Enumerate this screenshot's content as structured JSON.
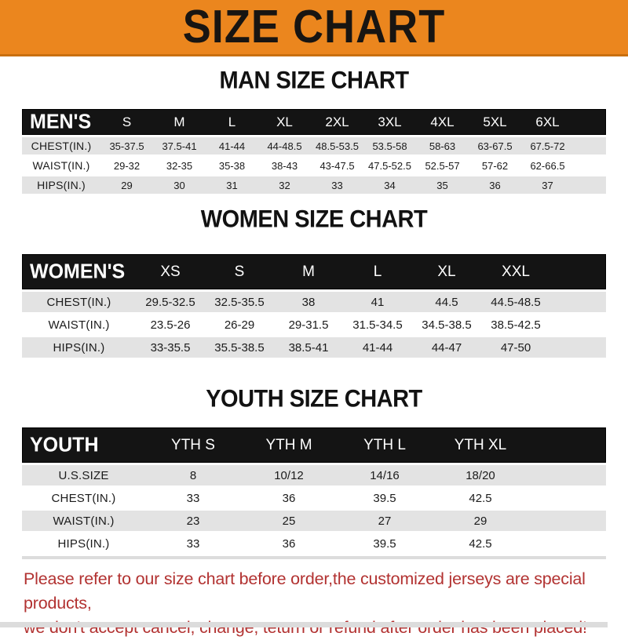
{
  "banner": {
    "title": "SIZE CHART"
  },
  "colors": {
    "banner_bg": "#EB861E",
    "banner_edge": "#C9700F",
    "header_bar": "#141414",
    "row_stripe": "#E3E3E3",
    "footer_text": "#B23231"
  },
  "sections": [
    {
      "heading": "MAN SIZE CHART",
      "corner_label": "MEN'S",
      "columns": [
        "S",
        "M",
        "L",
        "XL",
        "2XL",
        "3XL",
        "4XL",
        "5XL",
        "6XL"
      ],
      "rows": [
        {
          "label": "CHEST(IN.)",
          "values": [
            "35-37.5",
            "37.5-41",
            "41-44",
            "44-48.5",
            "48.5-53.5",
            "53.5-58",
            "58-63",
            "63-67.5",
            "67.5-72"
          ]
        },
        {
          "label": "WAIST(IN.)",
          "values": [
            "29-32",
            "32-35",
            "35-38",
            "38-43",
            "43-47.5",
            "47.5-52.5",
            "52.5-57",
            "57-62",
            "62-66.5"
          ]
        },
        {
          "label": "HIPS(IN.)",
          "values": [
            "29",
            "30",
            "31",
            "32",
            "33",
            "34",
            "35",
            "36",
            "37"
          ]
        }
      ]
    },
    {
      "heading": "WOMEN SIZE CHART",
      "corner_label": "WOMEN'S",
      "columns": [
        "XS",
        "S",
        "M",
        "L",
        "XL",
        "XXL"
      ],
      "rows": [
        {
          "label": "CHEST(IN.)",
          "values": [
            "29.5-32.5",
            "32.5-35.5",
            "38",
            "41",
            "44.5",
            "44.5-48.5"
          ]
        },
        {
          "label": "WAIST(IN.)",
          "values": [
            "23.5-26",
            "26-29",
            "29-31.5",
            "31.5-34.5",
            "34.5-38.5",
            "38.5-42.5"
          ]
        },
        {
          "label": "HIPS(IN.)",
          "values": [
            "33-35.5",
            "35.5-38.5",
            "38.5-41",
            "41-44",
            "44-47",
            "47-50"
          ]
        }
      ]
    },
    {
      "heading": "YOUTH SIZE CHART",
      "corner_label": "YOUTH",
      "columns": [
        "YTH S",
        "YTH M",
        "YTH L",
        "YTH XL"
      ],
      "rows": [
        {
          "label": "U.S.SIZE",
          "values": [
            "8",
            "10/12",
            "14/16",
            "18/20"
          ]
        },
        {
          "label": "CHEST(IN.)",
          "values": [
            "33",
            "36",
            "39.5",
            "42.5"
          ]
        },
        {
          "label": "WAIST(IN.)",
          "values": [
            "23",
            "25",
            "27",
            "29"
          ]
        },
        {
          "label": "HIPS(IN.)",
          "values": [
            "33",
            "36",
            "39.5",
            "42.5"
          ]
        }
      ]
    }
  ],
  "footer": {
    "line1": "Please refer to our size chart before order,the customized jerseys are special products,",
    "line2": "we don't accept cancel, change, teturn or refund after order has been placed!"
  }
}
